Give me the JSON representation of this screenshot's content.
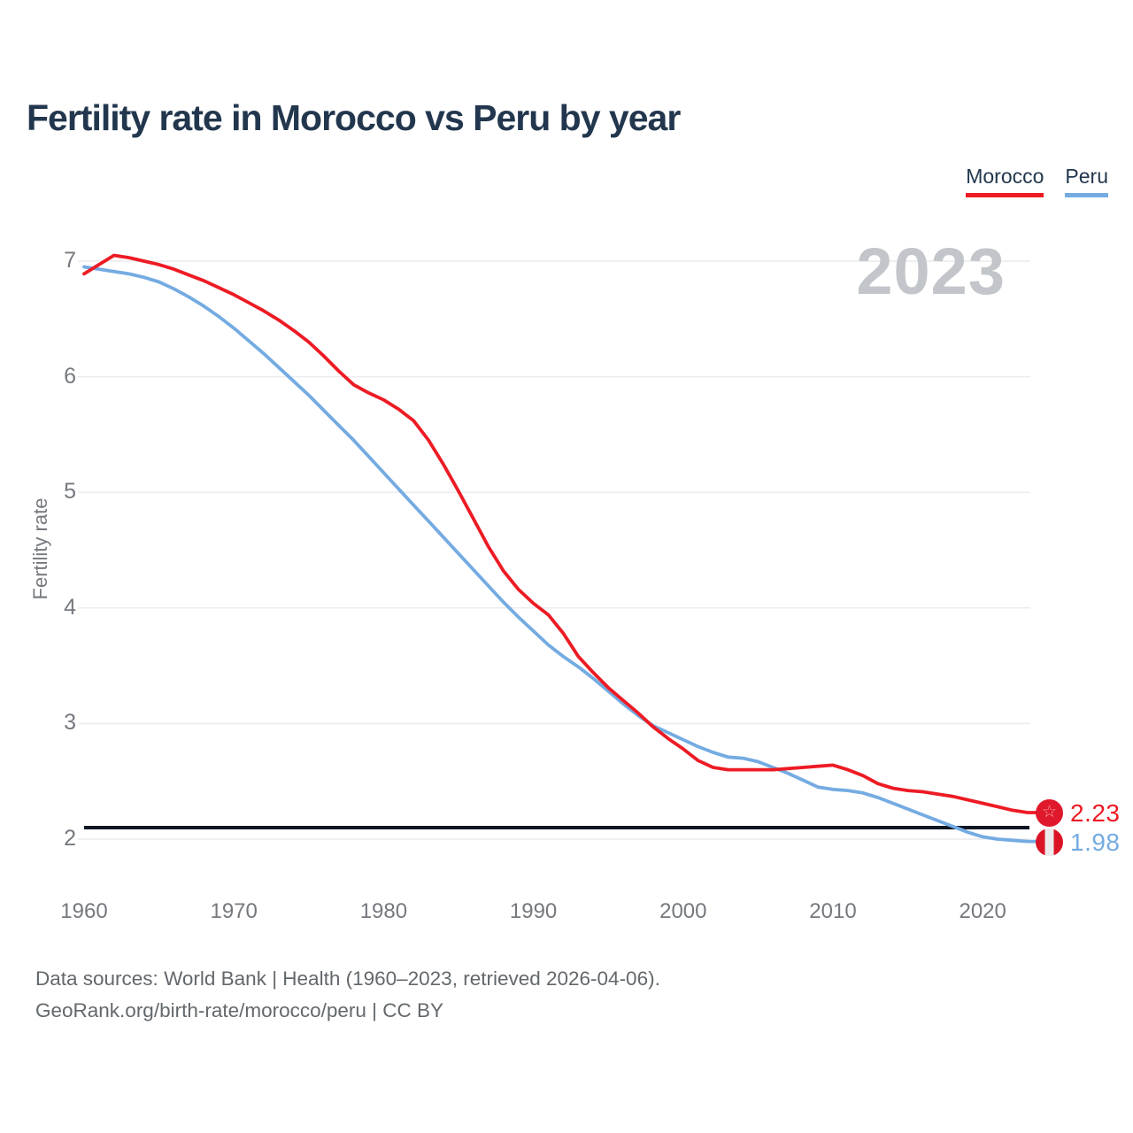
{
  "title": "Fertility rate in Morocco vs Peru by year",
  "watermark_year": "2023",
  "legend": [
    {
      "label": "Morocco",
      "color": "#ed1b24"
    },
    {
      "label": "Peru",
      "color": "#74abe2"
    }
  ],
  "y_axis": {
    "title": "Fertility rate",
    "ticks": [
      7,
      6,
      5,
      4,
      3,
      2
    ]
  },
  "x_axis": {
    "ticks": [
      1960,
      1970,
      1980,
      1990,
      2000,
      2010,
      2020
    ]
  },
  "reference_line": {
    "value": 2.1,
    "color": "#0d1523"
  },
  "end_labels": [
    {
      "series": "Morocco",
      "value": "2.23",
      "flag": "morocco-flag"
    },
    {
      "series": "Peru",
      "value": "1.98",
      "flag": "peru-flag"
    }
  ],
  "footer": {
    "line1": "Data sources: World Bank | Health (1960–2023, retrieved 2026-04-06).",
    "line2": "GeoRank.org/birth-rate/morocco/peru | CC BY"
  },
  "chart_data": {
    "type": "line",
    "title": "Fertility rate in Morocco vs Peru by year",
    "xlabel": "",
    "ylabel": "Fertility rate",
    "x_start": 1960,
    "x_end": 2023,
    "xlim": [
      1960,
      2023
    ],
    "ylim": [
      1.8,
      7.3
    ],
    "grid": true,
    "legend_position": "top-right",
    "reference_line": 2.1,
    "x": [
      1960,
      1961,
      1962,
      1963,
      1964,
      1965,
      1966,
      1967,
      1968,
      1969,
      1970,
      1971,
      1972,
      1973,
      1974,
      1975,
      1976,
      1977,
      1978,
      1979,
      1980,
      1981,
      1982,
      1983,
      1984,
      1985,
      1986,
      1987,
      1988,
      1989,
      1990,
      1991,
      1992,
      1993,
      1994,
      1995,
      1996,
      1997,
      1998,
      1999,
      2000,
      2001,
      2002,
      2003,
      2004,
      2005,
      2006,
      2007,
      2008,
      2009,
      2010,
      2011,
      2012,
      2013,
      2014,
      2015,
      2016,
      2017,
      2018,
      2019,
      2020,
      2021,
      2022,
      2023
    ],
    "series": [
      {
        "name": "Morocco",
        "color": "#ed1b24",
        "end_value": 2.23,
        "values": [
          6.89,
          6.97,
          7.05,
          7.03,
          7.0,
          6.97,
          6.93,
          6.88,
          6.83,
          6.77,
          6.71,
          6.64,
          6.57,
          6.49,
          6.4,
          6.3,
          6.18,
          6.05,
          5.93,
          5.86,
          5.8,
          5.72,
          5.62,
          5.45,
          5.24,
          5.01,
          4.77,
          4.53,
          4.32,
          4.16,
          4.04,
          3.94,
          3.78,
          3.58,
          3.44,
          3.31,
          3.2,
          3.09,
          2.97,
          2.87,
          2.78,
          2.68,
          2.62,
          2.6,
          2.6,
          2.6,
          2.6,
          2.61,
          2.62,
          2.63,
          2.64,
          2.6,
          2.55,
          2.48,
          2.44,
          2.42,
          2.41,
          2.39,
          2.37,
          2.34,
          2.31,
          2.28,
          2.25,
          2.23
        ]
      },
      {
        "name": "Peru",
        "color": "#74abe2",
        "end_value": 1.98,
        "values": [
          6.95,
          6.93,
          6.91,
          6.89,
          6.86,
          6.82,
          6.76,
          6.69,
          6.61,
          6.52,
          6.42,
          6.31,
          6.2,
          6.08,
          5.96,
          5.84,
          5.71,
          5.58,
          5.45,
          5.31,
          5.17,
          5.03,
          4.89,
          4.75,
          4.61,
          4.47,
          4.33,
          4.19,
          4.05,
          3.92,
          3.8,
          3.68,
          3.58,
          3.49,
          3.39,
          3.28,
          3.17,
          3.07,
          2.98,
          2.92,
          2.86,
          2.8,
          2.75,
          2.71,
          2.7,
          2.67,
          2.62,
          2.57,
          2.51,
          2.45,
          2.43,
          2.42,
          2.4,
          2.36,
          2.31,
          2.26,
          2.21,
          2.16,
          2.11,
          2.06,
          2.02,
          2.0,
          1.99,
          1.98
        ]
      }
    ]
  }
}
